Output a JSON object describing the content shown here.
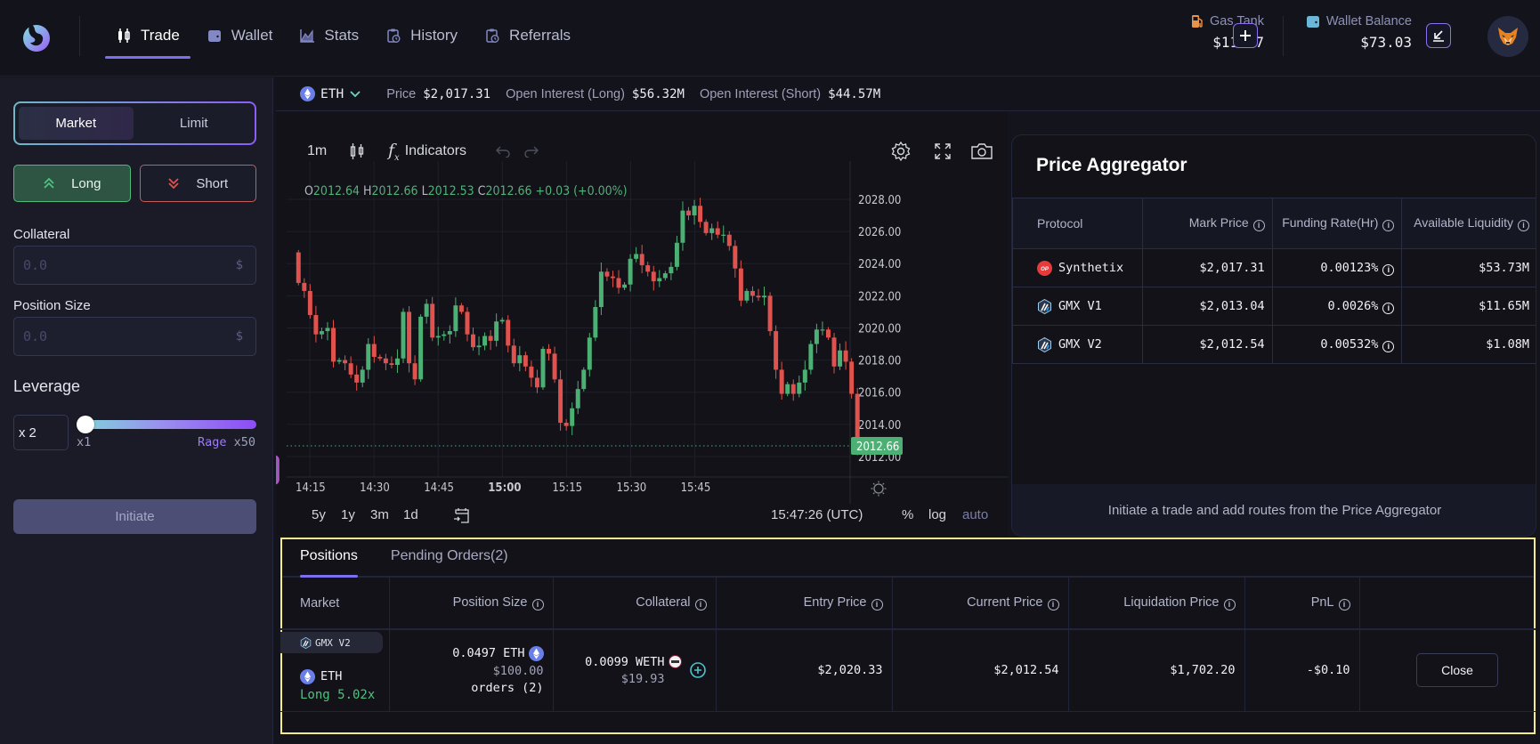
{
  "nav": {
    "items": [
      {
        "label": "Trade",
        "icon": "candlestick-icon",
        "active": true
      },
      {
        "label": "Wallet",
        "icon": "wallet-icon",
        "active": false
      },
      {
        "label": "Stats",
        "icon": "chart-area-icon",
        "active": false
      },
      {
        "label": "History",
        "icon": "clipboard-clock-icon",
        "active": false
      },
      {
        "label": "Referrals",
        "icon": "clipboard-clock-icon",
        "active": false
      }
    ]
  },
  "header": {
    "gas_tank": {
      "label": "Gas Tank",
      "value": "$11.97",
      "button": "+"
    },
    "wallet_balance": {
      "label": "Wallet Balance",
      "value": "$73.03"
    }
  },
  "order_panel": {
    "order_types": [
      "Market",
      "Limit"
    ],
    "active_order_type": "Market",
    "long_label": "Long",
    "short_label": "Short",
    "collateral": {
      "label": "Collateral",
      "placeholder": "0.0",
      "unit": "$"
    },
    "position_size": {
      "label": "Position Size",
      "placeholder": "0.0",
      "unit": "$"
    },
    "leverage": {
      "label": "Leverage",
      "prefix": "x",
      "value": "2",
      "min_label": "x1",
      "rage_label": "Rage",
      "max_label": "x50"
    },
    "initiate_label": "Initiate"
  },
  "ticker": {
    "asset": "ETH",
    "price_label": "Price",
    "price": "$2,017.31",
    "oi_long_label": "Open Interest (Long)",
    "oi_long": "$56.32M",
    "oi_short_label": "Open Interest (Short)",
    "oi_short": "$44.57M"
  },
  "chart": {
    "interval": "1m",
    "indicators_label": "Indicators",
    "ohlc": {
      "o_label": "O",
      "o": "2012.64",
      "h_label": "H",
      "h": "2012.66",
      "l_label": "L",
      "l": "2012.53",
      "c_label": "C",
      "c": "2012.66",
      "change": "+0.03 (+0.00%)"
    },
    "ranges": [
      "5y",
      "1y",
      "3m",
      "1d"
    ],
    "time": "15:47:26 (UTC)",
    "scale_opts": [
      "%",
      "log",
      "auto"
    ],
    "last_price_tag": "2012.66"
  },
  "chart_data": {
    "type": "candlestick",
    "title": "ETH 1m",
    "xlabel": "",
    "ylabel": "",
    "ylim": [
      2011.0,
      2029.0
    ],
    "yticks": [
      "2028.00",
      "2026.00",
      "2024.00",
      "2022.00",
      "2020.00",
      "2018.00",
      "2016.00",
      "2014.00",
      "2012.00"
    ],
    "xticks": [
      "14:15",
      "14:30",
      "14:45",
      "15:00",
      "15:15",
      "15:30",
      "15:45"
    ],
    "grid": true,
    "up_color": "#4caf73",
    "down_color": "#e0524d",
    "closes": [
      2022.8,
      2022.3,
      2020.8,
      2019.6,
      2019.8,
      2020.0,
      2017.9,
      2018.0,
      2017.8,
      2017.1,
      2016.6,
      2017.4,
      2019.0,
      2018.2,
      2018.1,
      2017.8,
      2017.7,
      2018.1,
      2021.0,
      2017.8,
      2016.8,
      2020.7,
      2021.5,
      2019.4,
      2019.5,
      2019.6,
      2019.8,
      2021.4,
      2021.0,
      2019.6,
      2018.8,
      2018.9,
      2019.5,
      2019.2,
      2020.4,
      2020.5,
      2018.9,
      2017.8,
      2018.3,
      2017.6,
      2016.9,
      2016.3,
      2018.7,
      2018.4,
      2016.8,
      2014.1,
      2013.9,
      2015.0,
      2016.2,
      2017.4,
      2019.4,
      2021.3,
      2023.5,
      2023.2,
      2023.1,
      2022.5,
      2022.7,
      2024.3,
      2024.6,
      2023.9,
      2023.5,
      2022.9,
      2023.1,
      2023.4,
      2023.8,
      2025.3,
      2027.3,
      2027.0,
      2027.6,
      2026.6,
      2025.9,
      2026.2,
      2025.8,
      2025.8,
      2025.1,
      2023.7,
      2021.7,
      2022.3,
      2022.0,
      2021.9,
      2022.0,
      2019.8,
      2017.4,
      2015.9,
      2016.5,
      2015.9,
      2016.6,
      2017.4,
      2019.0,
      2019.9,
      2019.9,
      2019.4,
      2017.6,
      2018.6,
      2017.9,
      2015.9,
      2012.64,
      2012.66
    ],
    "last_close": 2012.66
  },
  "aggregator": {
    "title": "Price Aggregator",
    "columns": [
      "Protocol",
      "Mark Price",
      "Funding Rate(Hr)",
      "Available Liquidity"
    ],
    "rows": [
      {
        "protocol": "Synthetix",
        "icon": "optimism-icon",
        "mark": "$2,017.31",
        "funding": "0.00123%",
        "liquidity": "$53.73M"
      },
      {
        "protocol": "GMX V1",
        "icon": "arbitrum-icon",
        "mark": "$2,013.04",
        "funding": "0.0026%",
        "liquidity": "$11.65M"
      },
      {
        "protocol": "GMX V2",
        "icon": "arbitrum-icon",
        "mark": "$2,012.54",
        "funding": "0.00532%",
        "liquidity": "$1.08M"
      }
    ],
    "footer": "Initiate a trade and add routes from the Price Aggregator"
  },
  "positions": {
    "tabs": [
      "Positions",
      "Pending Orders(2)"
    ],
    "active_tab": "Positions",
    "columns": [
      "Market",
      "Position Size",
      "Collateral",
      "Entry Price",
      "Current Price",
      "Liquidation Price",
      "PnL",
      ""
    ],
    "rows": [
      {
        "protocol": "GMX V2",
        "asset": "ETH",
        "side": "Long 5.02x",
        "size": "0.0497 ETH",
        "size_usd": "$100.00",
        "orders": "orders (2)",
        "collateral": "0.0099 WETH",
        "collateral_usd": "$19.93",
        "entry": "$2,020.33",
        "current": "$2,012.54",
        "liquidation": "$1,702.20",
        "pnl": "-$0.10",
        "action": "Close"
      }
    ]
  },
  "colors": {
    "accent": "#7c6ff0",
    "long": "#4fba7a",
    "short": "#c75c5c",
    "background": "#121218"
  }
}
